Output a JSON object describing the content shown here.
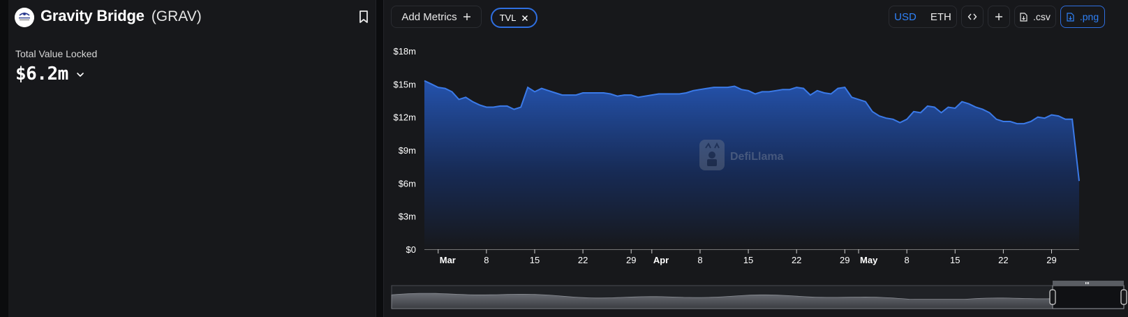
{
  "protocol": {
    "name": "Gravity Bridge",
    "symbol": "(GRAV)",
    "logo_text": "GRAVITY BRIDGE",
    "tvl_label": "Total Value Locked",
    "tvl_value": "$6.2m"
  },
  "toolbar": {
    "add_metrics_label": "Add Metrics",
    "active_metric": "TVL",
    "currencies": [
      "USD",
      "ETH"
    ],
    "active_currency": "USD",
    "csv_label": ".csv",
    "png_label": ".png"
  },
  "watermark": "DefiLlama",
  "colors": {
    "accent": "#2f6fe0",
    "line": "#3b7ae8",
    "panel": "#17181b"
  },
  "chart_data": {
    "type": "area",
    "title": "",
    "xlabel": "",
    "ylabel": "",
    "ylim": [
      0,
      18000000
    ],
    "y_ticks": [
      "$0",
      "$3m",
      "$6m",
      "$9m",
      "$12m",
      "$15m",
      "$18m"
    ],
    "x_ticks": [
      {
        "label": "Mar",
        "bold": true
      },
      {
        "label": "8",
        "bold": false
      },
      {
        "label": "15",
        "bold": false
      },
      {
        "label": "22",
        "bold": false
      },
      {
        "label": "29",
        "bold": false
      },
      {
        "label": "Apr",
        "bold": true
      },
      {
        "label": "8",
        "bold": false
      },
      {
        "label": "15",
        "bold": false
      },
      {
        "label": "22",
        "bold": false
      },
      {
        "label": "29",
        "bold": false
      },
      {
        "label": "May",
        "bold": true
      },
      {
        "label": "8",
        "bold": false
      },
      {
        "label": "15",
        "bold": false
      },
      {
        "label": "22",
        "bold": false
      },
      {
        "label": "29",
        "bold": false
      }
    ],
    "x_tick_dates": [
      "2024-03-01",
      "2024-03-08",
      "2024-03-15",
      "2024-03-22",
      "2024-03-29",
      "2024-04-01",
      "2024-04-08",
      "2024-04-15",
      "2024-04-22",
      "2024-04-29",
      "2024-05-01",
      "2024-05-08",
      "2024-05-15",
      "2024-05-22",
      "2024-05-29"
    ],
    "x_start": "2024-02-28",
    "series": [
      {
        "name": "TVL",
        "values": [
          15.3,
          15.0,
          14.7,
          14.6,
          14.3,
          13.6,
          13.8,
          13.4,
          13.1,
          12.9,
          12.9,
          13.0,
          13.0,
          12.7,
          12.9,
          14.7,
          14.3,
          14.6,
          14.4,
          14.2,
          14.0,
          14.0,
          14.0,
          14.2,
          14.2,
          14.2,
          14.2,
          14.1,
          13.9,
          14.0,
          14.0,
          13.8,
          13.9,
          14.0,
          14.1,
          14.1,
          14.1,
          14.1,
          14.2,
          14.4,
          14.5,
          14.6,
          14.7,
          14.7,
          14.7,
          14.8,
          14.5,
          14.4,
          14.1,
          14.3,
          14.3,
          14.4,
          14.5,
          14.5,
          14.7,
          14.6,
          14.0,
          14.4,
          14.2,
          14.1,
          14.6,
          14.7,
          13.8,
          13.6,
          13.4,
          12.5,
          12.1,
          11.9,
          11.8,
          11.5,
          11.8,
          12.5,
          12.4,
          13.0,
          12.9,
          12.4,
          12.9,
          12.8,
          13.4,
          13.2,
          12.9,
          12.7,
          12.4,
          11.8,
          11.6,
          11.6,
          11.4,
          11.4,
          11.6,
          12.0,
          11.9,
          12.2,
          12.1,
          11.8,
          11.8,
          6.2
        ]
      }
    ]
  }
}
